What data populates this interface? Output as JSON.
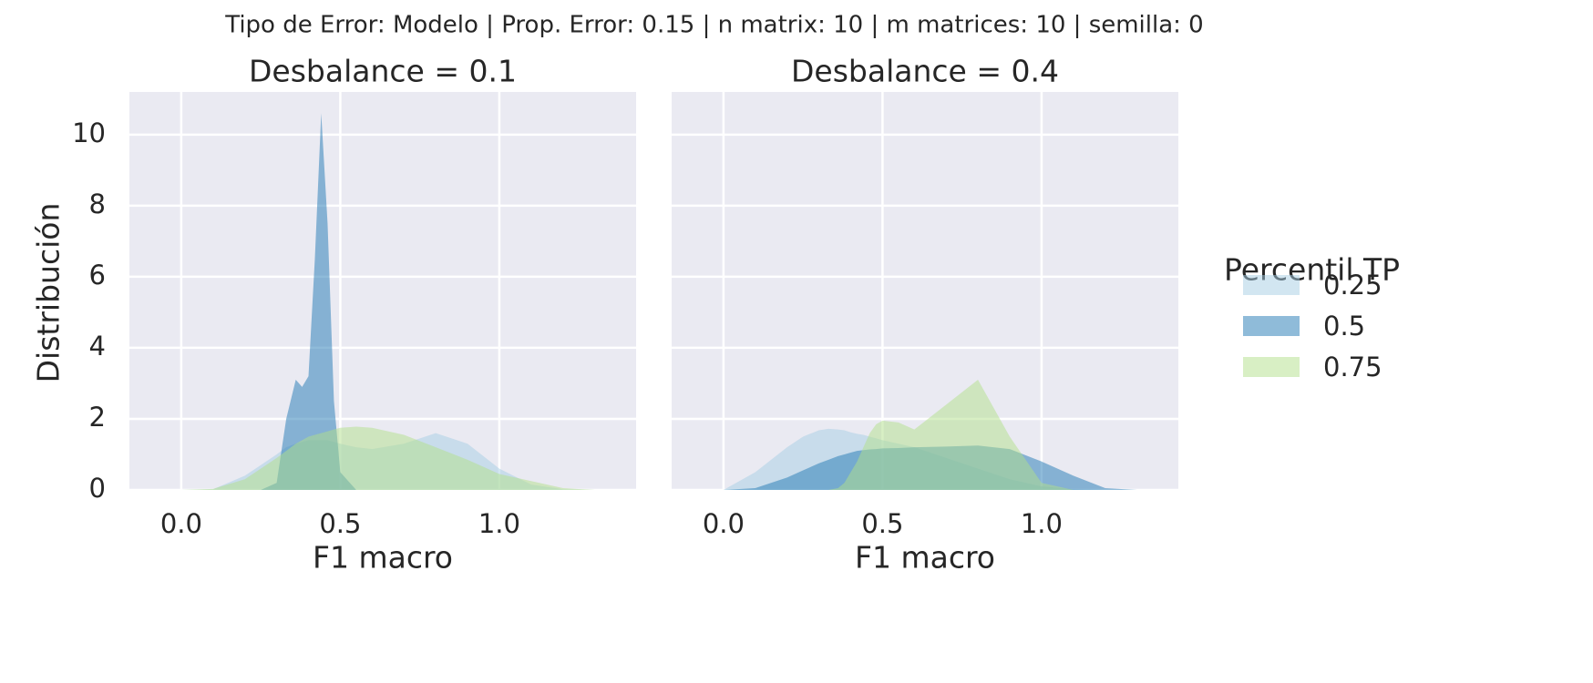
{
  "title": "Tipo de Error: Modelo | Prop. Error: 0.15 | n matrix: 10 | m matrices: 10 | semilla: 0",
  "legend_title": "Percentil TP",
  "chart_data": [
    {
      "type": "area",
      "title": "Desbalance = 0.1",
      "x_label": "F1 macro",
      "y_label": "Distribución",
      "xlim": [
        -0.163,
        1.43
      ],
      "ylim": [
        0,
        11.2
      ],
      "xticks": [
        {
          "value": 0,
          "label": "0.0"
        },
        {
          "value": 0.5,
          "label": "0.5"
        },
        {
          "value": 1,
          "label": "1.0"
        }
      ],
      "yticks": [
        0,
        2,
        4,
        6,
        8,
        10
      ],
      "grid": true,
      "x": [
        0,
        0.1,
        0.2,
        0.25,
        0.3,
        0.33,
        0.36,
        0.38,
        0.4,
        0.42,
        0.44,
        0.46,
        0.48,
        0.5,
        0.55,
        0.6,
        0.7,
        0.8,
        0.9,
        1.0,
        1.1,
        1.2,
        1.3
      ],
      "series": [
        {
          "name": "0.25",
          "color": "#a6cee3",
          "values": [
            0,
            0.02,
            0.4,
            0.7,
            1.0,
            1.2,
            1.3,
            1.35,
            1.4,
            1.4,
            1.4,
            1.4,
            1.35,
            1.3,
            1.2,
            1.15,
            1.3,
            1.6,
            1.3,
            0.6,
            0.15,
            0.02,
            0
          ]
        },
        {
          "name": "0.5",
          "color": "#1f78b4",
          "values": [
            0,
            0,
            0,
            0,
            0.2,
            2.0,
            3.1,
            2.9,
            3.2,
            6.5,
            10.6,
            7.5,
            2.5,
            0.5,
            0,
            0,
            0,
            0,
            0,
            0,
            0,
            0,
            0
          ]
        },
        {
          "name": "0.75",
          "color": "#b2df8a",
          "values": [
            0,
            0.03,
            0.3,
            0.6,
            0.9,
            1.1,
            1.3,
            1.4,
            1.5,
            1.55,
            1.6,
            1.65,
            1.7,
            1.75,
            1.78,
            1.75,
            1.55,
            1.2,
            0.85,
            0.45,
            0.25,
            0.05,
            0
          ]
        }
      ]
    },
    {
      "type": "area",
      "title": "Desbalance = 0.4",
      "x_label": "F1 macro",
      "xlim": [
        -0.163,
        1.43
      ],
      "ylim": [
        0,
        11.2
      ],
      "xticks": [
        {
          "value": 0,
          "label": "0.0"
        },
        {
          "value": 0.5,
          "label": "0.5"
        },
        {
          "value": 1,
          "label": "1.0"
        }
      ],
      "yticks": [
        0,
        2,
        4,
        6,
        8,
        10
      ],
      "grid": true,
      "x": [
        0,
        0.1,
        0.2,
        0.25,
        0.3,
        0.33,
        0.36,
        0.38,
        0.4,
        0.42,
        0.44,
        0.46,
        0.48,
        0.5,
        0.55,
        0.6,
        0.7,
        0.8,
        0.9,
        1.0,
        1.1,
        1.2,
        1.3
      ],
      "series": [
        {
          "name": "0.25",
          "color": "#a6cee3",
          "values": [
            0,
            0.5,
            1.2,
            1.5,
            1.68,
            1.72,
            1.7,
            1.68,
            1.62,
            1.58,
            1.55,
            1.5,
            1.45,
            1.4,
            1.3,
            1.2,
            0.9,
            0.6,
            0.3,
            0.1,
            0.02,
            0,
            0
          ]
        },
        {
          "name": "0.5",
          "color": "#1f78b4",
          "values": [
            0,
            0.05,
            0.35,
            0.55,
            0.75,
            0.85,
            0.95,
            1.0,
            1.05,
            1.1,
            1.12,
            1.14,
            1.15,
            1.17,
            1.18,
            1.2,
            1.22,
            1.25,
            1.15,
            0.8,
            0.4,
            0.05,
            0
          ]
        },
        {
          "name": "0.75",
          "color": "#b2df8a",
          "values": [
            0,
            0,
            0,
            0,
            0,
            0,
            0.05,
            0.2,
            0.5,
            0.8,
            1.2,
            1.6,
            1.85,
            1.95,
            1.9,
            1.7,
            2.4,
            3.1,
            1.5,
            0.2,
            0,
            0,
            0
          ]
        }
      ]
    }
  ]
}
